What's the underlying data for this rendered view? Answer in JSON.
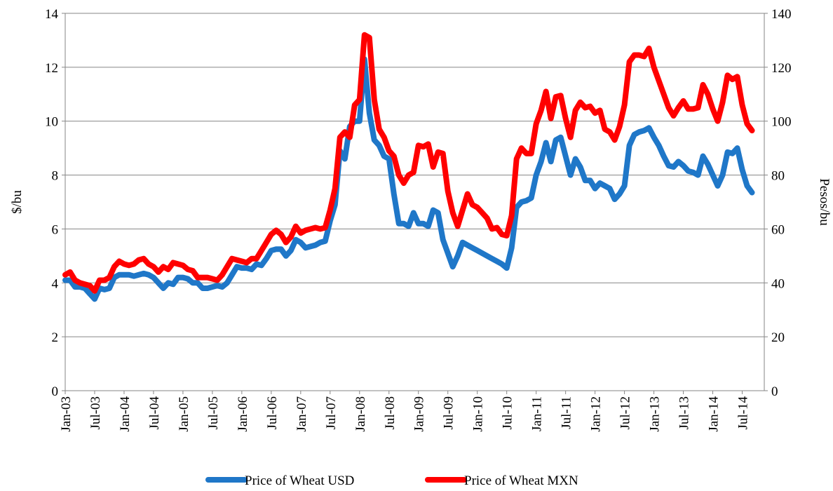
{
  "chart_data": {
    "type": "line",
    "y_label": "$/bu",
    "y2_label": "Pesos/bu",
    "ylim": [
      0,
      14
    ],
    "yticks": [
      0,
      2,
      4,
      6,
      8,
      10,
      12,
      14
    ],
    "y2lim": [
      0,
      140
    ],
    "y2ticks": [
      0,
      20,
      40,
      60,
      80,
      100,
      120,
      140
    ],
    "grid": true,
    "legend": "bottom",
    "categories": [
      "Jan-03",
      null,
      null,
      null,
      null,
      null,
      "Jul-03",
      null,
      null,
      null,
      null,
      null,
      "Jan-04",
      null,
      null,
      null,
      null,
      null,
      "Jul-04",
      null,
      null,
      null,
      null,
      null,
      "Jan-05",
      null,
      null,
      null,
      null,
      null,
      "Jul-05",
      null,
      null,
      null,
      null,
      null,
      "Jan-06",
      null,
      null,
      null,
      null,
      null,
      "Jul-06",
      null,
      null,
      null,
      null,
      null,
      "Jan-07",
      null,
      null,
      null,
      null,
      null,
      "Jul-07",
      null,
      null,
      null,
      null,
      null,
      "Jan-08",
      null,
      null,
      null,
      null,
      null,
      "Jul-08",
      null,
      null,
      null,
      null,
      null,
      "Jan-09",
      null,
      null,
      null,
      null,
      null,
      "Jul-09",
      null,
      null,
      null,
      null,
      null,
      "Jan-10",
      null,
      null,
      null,
      null,
      null,
      "Jul-10",
      null,
      null,
      null,
      null,
      null,
      "Jan-11",
      null,
      null,
      null,
      null,
      null,
      "Jul-11",
      null,
      null,
      null,
      null,
      null,
      "Jan-12",
      null,
      null,
      null,
      null,
      null,
      "Jul-12",
      null,
      null,
      null,
      null,
      null,
      "Jan-13",
      null,
      null,
      null,
      null,
      null,
      "Jul-13",
      null,
      null,
      null,
      null,
      null,
      "Jan-14",
      null,
      null,
      null,
      null,
      null,
      "Jul-14",
      null,
      null
    ],
    "series": [
      {
        "name": "Price of Wheat USD",
        "color": "#1f77c8",
        "axis": "y",
        "values": [
          4.1,
          4.1,
          3.85,
          3.85,
          3.8,
          3.6,
          3.4,
          3.8,
          3.75,
          3.8,
          4.2,
          4.3,
          4.3,
          4.3,
          4.25,
          4.3,
          4.35,
          4.3,
          4.2,
          4.0,
          3.8,
          4.0,
          3.95,
          4.2,
          4.2,
          4.15,
          4.0,
          4.0,
          3.8,
          3.8,
          3.85,
          3.9,
          3.85,
          4.0,
          4.3,
          4.6,
          4.55,
          4.55,
          4.5,
          4.7,
          4.65,
          4.9,
          5.2,
          5.25,
          5.25,
          5.0,
          5.2,
          5.6,
          5.5,
          5.3,
          5.35,
          5.4,
          5.5,
          5.55,
          6.3,
          6.9,
          8.9,
          8.6,
          9.8,
          10.0,
          10.0,
          12.3,
          10.3,
          9.3,
          9.1,
          8.7,
          8.6,
          7.3,
          6.2,
          6.2,
          6.1,
          6.6,
          6.2,
          6.2,
          6.1,
          6.7,
          6.6,
          5.6,
          5.1,
          4.6,
          5.0,
          5.5,
          5.4,
          5.3,
          5.2,
          5.1,
          5.0,
          4.9,
          4.8,
          4.7,
          4.55,
          5.3,
          6.8,
          7.0,
          7.05,
          7.15,
          8.0,
          8.5,
          9.2,
          8.5,
          9.3,
          9.4,
          8.7,
          8.0,
          8.6,
          8.3,
          7.8,
          7.8,
          7.5,
          7.7,
          7.6,
          7.5,
          7.1,
          7.3,
          7.6,
          9.1,
          9.5,
          9.6,
          9.65,
          9.75,
          9.4,
          9.1,
          8.7,
          8.35,
          8.3,
          8.5,
          8.35,
          8.15,
          8.1,
          8.0,
          8.7,
          8.4,
          8.0,
          7.6,
          8.0,
          8.85,
          8.8,
          9.0,
          8.2,
          7.6,
          7.35
        ]
      },
      {
        "name": "Price of Wheat MXN",
        "color": "#ff0000",
        "axis": "y2",
        "values": [
          43,
          44,
          41,
          40,
          39.5,
          39,
          37,
          41,
          41,
          42,
          46,
          48,
          47,
          46.5,
          47,
          48.5,
          49,
          47,
          46,
          44,
          46,
          45,
          47.5,
          47,
          46.5,
          45,
          44.5,
          42,
          42,
          42,
          41.5,
          41,
          43,
          46,
          49,
          48.5,
          48,
          47.5,
          49,
          49,
          52,
          55,
          58,
          59.5,
          58,
          55,
          57,
          61,
          58.5,
          59.5,
          60,
          60.5,
          60,
          60.5,
          67,
          75,
          94,
          96,
          94,
          106,
          108,
          132,
          131,
          108,
          97,
          94,
          89,
          87,
          80,
          77,
          80,
          81,
          91,
          90.5,
          91.5,
          83,
          88.5,
          88,
          74,
          66,
          61,
          67,
          73,
          69,
          68,
          66,
          64,
          60,
          60.5,
          58,
          57.5,
          65,
          86,
          90,
          88,
          88,
          99,
          104,
          111,
          101,
          109,
          109.5,
          101,
          94,
          104,
          107,
          105,
          105.5,
          103,
          104,
          97,
          96,
          93,
          98,
          106,
          122,
          124.5,
          124.5,
          124,
          127,
          120,
          115,
          110,
          105,
          102,
          105,
          107.5,
          104.5,
          104.5,
          105,
          113.5,
          110,
          104.5,
          100,
          107,
          117,
          115.5,
          116.5,
          106,
          99,
          96.5
        ]
      }
    ]
  }
}
